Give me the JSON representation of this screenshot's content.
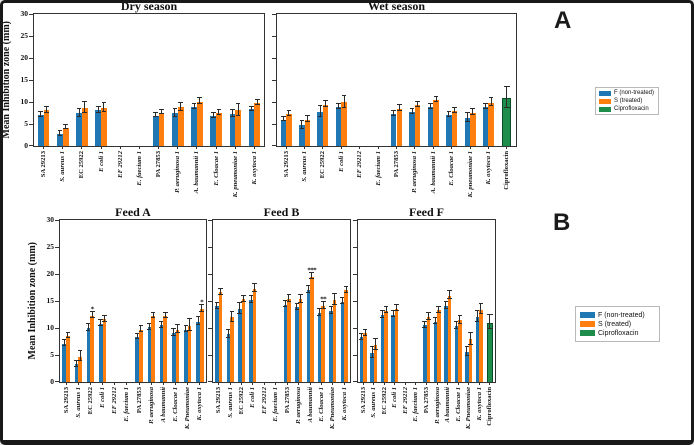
{
  "figure": {
    "panel_a_label": "A",
    "panel_b_label": "B",
    "ylabel": "Mean Inhibition zone (mm)"
  },
  "legend": {
    "items": [
      {
        "label": "F (non-treated)",
        "color": "#1f77b4"
      },
      {
        "label": "S (treated)",
        "color": "#ff7f0e"
      },
      {
        "label": "Ciprofloxacin",
        "color": "#1e8c4a"
      }
    ]
  },
  "colors": {
    "non_treated": "#1f77b4",
    "treated": "#ff7f0e",
    "ciprofloxacin": "#1e8c4a",
    "error_bar": "#2b2b2b"
  },
  "chart_data": [
    {
      "type": "bar",
      "title": "Dry season",
      "ylabel": "Mean Inhibition zone (mm)",
      "ylim": [
        0,
        30
      ],
      "yticks": [
        0,
        5,
        10,
        15,
        20,
        25,
        30
      ],
      "show_ytick_labels": true,
      "legend_position": "outside-right",
      "grid": false,
      "categories": [
        {
          "label": "SA 29213",
          "style": "b"
        },
        {
          "label": "S. aureus 1",
          "style": "bi"
        },
        {
          "label": "EC 25922",
          "style": "b"
        },
        {
          "label": "E coli 1",
          "style": "bi"
        },
        {
          "label": "EF 29212",
          "style": "bi"
        },
        {
          "label": "E. faecium 1",
          "style": "bi"
        },
        {
          "label": "PA 27853",
          "style": "b"
        },
        {
          "label": "P. aeruginosa 1",
          "style": "bi"
        },
        {
          "label": "A. baumannii 1",
          "style": "bi"
        },
        {
          "label": "E. Cloacae 1",
          "style": "bi"
        },
        {
          "label": "K. pneumoniae 1",
          "style": "bi"
        },
        {
          "label": "K. oxytoca 1",
          "style": "bi"
        }
      ],
      "series": [
        {
          "name": "F (non-treated)",
          "color": "#1f77b4",
          "values": [
            7.0,
            2.7,
            7.4,
            8.1,
            0,
            0,
            6.9,
            7.5,
            8.9,
            6.8,
            7.3,
            8.3
          ],
          "errors": [
            0.4,
            0.4,
            0.9,
            0.5,
            0,
            0,
            0.4,
            0.8,
            0.4,
            0.5,
            0.6,
            0.4
          ]
        },
        {
          "name": "S (treated)",
          "color": "#ff7f0e",
          "values": [
            8.1,
            4.2,
            8.6,
            8.7,
            0,
            0,
            7.6,
            8.8,
            10.1,
            7.5,
            8.1,
            9.8
          ],
          "errors": [
            0.5,
            0.4,
            1.1,
            0.9,
            0,
            0,
            0.4,
            0.8,
            0.5,
            0.5,
            1.2,
            0.5
          ]
        }
      ],
      "annotations": []
    },
    {
      "type": "bar",
      "title": "Wet season",
      "ylabel": "",
      "ylim": [
        0,
        30
      ],
      "yticks": [
        0,
        5,
        10,
        15,
        20,
        25,
        30
      ],
      "show_ytick_labels": false,
      "grid": false,
      "categories": [
        {
          "label": "SA 29213",
          "style": "b"
        },
        {
          "label": "S. aureus 1",
          "style": "bi"
        },
        {
          "label": "EC 25922",
          "style": "b"
        },
        {
          "label": "E coli 1",
          "style": "bi"
        },
        {
          "label": "EF 29212",
          "style": "bi"
        },
        {
          "label": "E. faecium 1",
          "style": "bi"
        },
        {
          "label": "PA 27853",
          "style": "b"
        },
        {
          "label": "P. aeruginosa 1",
          "style": "bi"
        },
        {
          "label": "A. baumannii 1",
          "style": "bi"
        },
        {
          "label": "E. Cloacae 1",
          "style": "bi"
        },
        {
          "label": "K. pneumoniae 1",
          "style": "bi"
        },
        {
          "label": "K. oxytoca 1",
          "style": "bi"
        },
        {
          "label": "Ciprofloxacin",
          "style": "b"
        }
      ],
      "series": [
        {
          "name": "F (non-treated)",
          "color": "#1f77b4",
          "values": [
            6.0,
            4.7,
            7.7,
            8.8,
            0,
            0,
            7.3,
            7.8,
            8.8,
            7.0,
            6.3,
            8.8,
            null
          ],
          "errors": [
            0.4,
            0.8,
            1.2,
            0.5,
            0,
            0,
            0.4,
            0.5,
            0.5,
            0.5,
            0.9,
            0.5,
            null
          ]
        },
        {
          "name": "S (treated)",
          "color": "#ff7f0e",
          "values": [
            7.3,
            6.0,
            9.4,
            9.9,
            0,
            0,
            8.5,
            9.3,
            10.4,
            7.9,
            7.6,
            9.8,
            null
          ],
          "errors": [
            0.4,
            0.6,
            0.6,
            1.3,
            0,
            0,
            0.5,
            0.5,
            0.5,
            0.5,
            0.5,
            0.8,
            null
          ]
        },
        {
          "name": "Ciprofloxacin",
          "color": "#1e8c4a",
          "values": [
            null,
            null,
            null,
            null,
            null,
            null,
            null,
            null,
            null,
            null,
            null,
            null,
            10.9
          ],
          "errors": [
            null,
            null,
            null,
            null,
            null,
            null,
            null,
            null,
            null,
            null,
            null,
            null,
            2.3
          ]
        }
      ],
      "annotations": []
    },
    {
      "type": "bar",
      "title": "Feed A",
      "ylabel": "Mean Inhibition zone (mm)",
      "ylim": [
        0,
        30
      ],
      "yticks": [
        0,
        5,
        10,
        15,
        20,
        25,
        30
      ],
      "show_ytick_labels": true,
      "grid": false,
      "categories": [
        {
          "label": "SA 29213",
          "style": "b"
        },
        {
          "label": "S. aureus 1",
          "style": "bi"
        },
        {
          "label": "EC 25922",
          "style": "b"
        },
        {
          "label": "E coli 1",
          "style": "bi"
        },
        {
          "label": "EF 29212",
          "style": "bi"
        },
        {
          "label": "E. faecium 1",
          "style": "bi"
        },
        {
          "label": "PA 27853",
          "style": "b"
        },
        {
          "label": "P. aeruginosa",
          "style": "bi"
        },
        {
          "label": "A baumannii",
          "style": "bi"
        },
        {
          "label": "E. Cloacae 1",
          "style": "bi"
        },
        {
          "label": "K. Pneumoniae",
          "style": "bi"
        },
        {
          "label": "K. oxytoca 1",
          "style": "bi"
        }
      ],
      "series": [
        {
          "name": "F (non-treated)",
          "color": "#1f77b4",
          "values": [
            7.1,
            3.3,
            10.0,
            10.8,
            0,
            0,
            8.4,
            10.1,
            10.5,
            9.1,
            9.7,
            11.2
          ],
          "errors": [
            0.5,
            0.5,
            0.6,
            0.5,
            0,
            0,
            0.4,
            0.4,
            0.5,
            0.6,
            0.5,
            0.6
          ]
        },
        {
          "name": "S (treated)",
          "color": "#ff7f0e",
          "values": [
            8.5,
            4.7,
            12.3,
            11.6,
            0,
            0,
            9.7,
            12.2,
            12.2,
            9.7,
            10.4,
            13.5
          ],
          "errors": [
            0.4,
            0.8,
            0.4,
            0.5,
            0,
            0,
            0.5,
            0.4,
            0.4,
            0.6,
            1.0,
            0.5
          ]
        }
      ],
      "annotations": [
        {
          "category": 2,
          "series": 1,
          "text": "*"
        },
        {
          "category": 11,
          "series": 1,
          "text": "*"
        }
      ]
    },
    {
      "type": "bar",
      "title": "Feed B",
      "ylabel": "",
      "ylim": [
        0,
        30
      ],
      "yticks": [
        0,
        5,
        10,
        15,
        20,
        25,
        30
      ],
      "show_ytick_labels": false,
      "grid": false,
      "categories": [
        {
          "label": "SA 29213",
          "style": "b"
        },
        {
          "label": "S. aureus 1",
          "style": "bi"
        },
        {
          "label": "EC 25922",
          "style": "b"
        },
        {
          "label": "E coli 1",
          "style": "bi"
        },
        {
          "label": "EF 29212",
          "style": "bi"
        },
        {
          "label": "E. faecium 1",
          "style": "bi"
        },
        {
          "label": "PA 27853",
          "style": "b"
        },
        {
          "label": "P. aeruginosa",
          "style": "bi"
        },
        {
          "label": "A baumannii",
          "style": "bi"
        },
        {
          "label": "E. Cloacae 1",
          "style": "bi"
        },
        {
          "label": "K. Pneumoniae",
          "style": "bi"
        },
        {
          "label": "K. oxytoca 1",
          "style": "bi"
        }
      ],
      "series": [
        {
          "name": "F (non-treated)",
          "color": "#1f77b4",
          "values": [
            14.0,
            8.8,
            13.5,
            15.2,
            0,
            0,
            14.3,
            13.8,
            17.0,
            12.8,
            13.2,
            14.9
          ],
          "errors": [
            0.5,
            0.6,
            0.9,
            0.5,
            0,
            0,
            0.5,
            0.5,
            0.6,
            0.5,
            0.6,
            0.5
          ]
        },
        {
          "name": "S (treated)",
          "color": "#ff7f0e",
          "values": [
            16.6,
            12.0,
            15.3,
            17.3,
            0,
            0,
            15.4,
            15.3,
            19.5,
            14.1,
            15.2,
            17.0
          ],
          "errors": [
            0.5,
            0.8,
            0.5,
            0.6,
            0,
            0,
            0.5,
            0.6,
            0.5,
            0.5,
            0.9,
            0.5
          ]
        }
      ],
      "annotations": [
        {
          "category": 8,
          "series": 1,
          "text": "***"
        },
        {
          "category": 9,
          "series": 1,
          "text": "**"
        }
      ]
    },
    {
      "type": "bar",
      "title": "Feed F",
      "ylabel": "",
      "ylim": [
        0,
        30
      ],
      "yticks": [
        0,
        5,
        10,
        15,
        20,
        25,
        30
      ],
      "show_ytick_labels": false,
      "grid": false,
      "categories": [
        {
          "label": "SA 29213",
          "style": "b"
        },
        {
          "label": "S. aureus 1",
          "style": "bi"
        },
        {
          "label": "EC 25922",
          "style": "b"
        },
        {
          "label": "E coli 1",
          "style": "bi"
        },
        {
          "label": "EF 29212",
          "style": "bi"
        },
        {
          "label": "E. faecium 1",
          "style": "bi"
        },
        {
          "label": "PA 27853",
          "style": "b"
        },
        {
          "label": "P. aeruginosa",
          "style": "bi"
        },
        {
          "label": "A baumannii",
          "style": "bi"
        },
        {
          "label": "E. Cloacae 1",
          "style": "bi"
        },
        {
          "label": "K. Pneumoniae",
          "style": "bi"
        },
        {
          "label": "K. oxytoca 1",
          "style": "bi"
        },
        {
          "label": "Ciprofloxacin",
          "style": "b"
        }
      ],
      "series": [
        {
          "name": "F (non-treated)",
          "color": "#1f77b4",
          "values": [
            8.3,
            5.4,
            12.4,
            12.5,
            0,
            0,
            10.5,
            11.2,
            14.1,
            10.4,
            5.6,
            12.1,
            null
          ],
          "errors": [
            0.5,
            0.9,
            0.5,
            0.5,
            0,
            0,
            0.5,
            0.5,
            0.5,
            0.5,
            0.7,
            0.9,
            null
          ]
        },
        {
          "name": "S (treated)",
          "color": "#ff7f0e",
          "values": [
            9.0,
            6.8,
            13.2,
            13.6,
            0,
            0,
            12.0,
            13.3,
            16.0,
            11.4,
            7.9,
            13.4,
            null
          ],
          "errors": [
            0.5,
            0.9,
            0.5,
            0.4,
            0,
            0,
            0.6,
            0.5,
            0.7,
            0.7,
            1.0,
            0.8,
            null
          ]
        },
        {
          "name": "Ciprofloxacin",
          "color": "#1e8c4a",
          "values": [
            null,
            null,
            null,
            null,
            null,
            null,
            null,
            null,
            null,
            null,
            null,
            null,
            11.0
          ],
          "errors": [
            null,
            null,
            null,
            null,
            null,
            null,
            null,
            null,
            null,
            null,
            null,
            null,
            1.2
          ]
        }
      ],
      "annotations": []
    }
  ]
}
